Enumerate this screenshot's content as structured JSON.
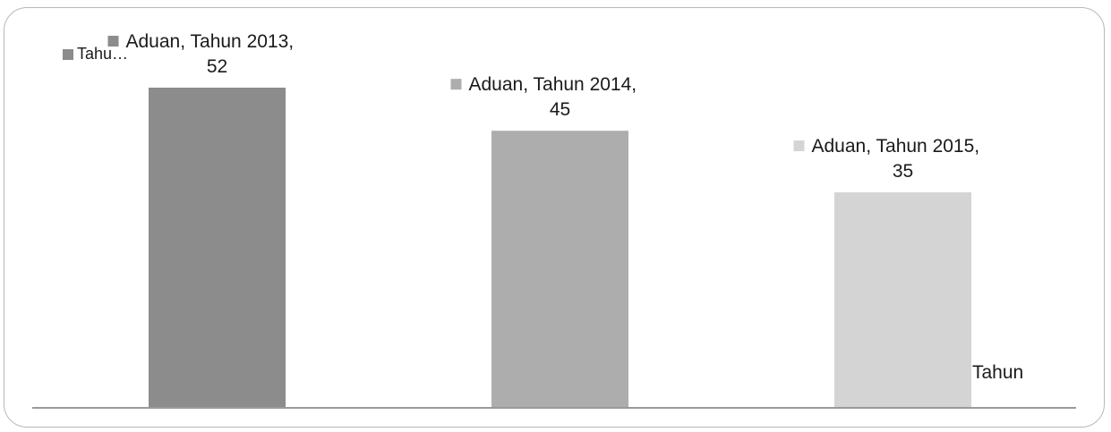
{
  "chart_data": {
    "type": "bar",
    "categories": [
      "Tahun 2013",
      "Tahun 2014",
      "Tahun 2015"
    ],
    "series": [
      {
        "name": "Aduan",
        "values": [
          52,
          45,
          35
        ]
      }
    ],
    "data_labels": [
      {
        "line1": "Aduan, Tahun 2013,",
        "line2": "52"
      },
      {
        "line1": "Aduan, Tahun 2014,",
        "line2": "45"
      },
      {
        "line1": "Aduan, Tahun 2015,",
        "line2": "35"
      }
    ],
    "bar_colors": [
      "#8c8c8c",
      "#adadad",
      "#d4d4d4"
    ],
    "axis_line_color": "#9a9a9a",
    "xlabel": "Tahun",
    "ylabel": "",
    "ylim": [
      0,
      52
    ],
    "grid": false,
    "legend": {
      "position": "top-left",
      "label": "Tahu…",
      "color": "#8c8c8c"
    }
  }
}
